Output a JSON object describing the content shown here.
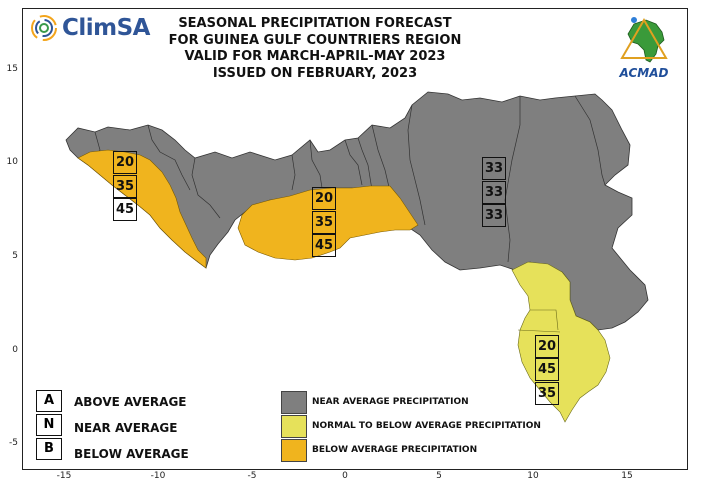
{
  "title": {
    "line1": "SEASONAL PRECIPITATION FORECAST",
    "line2": "FOR GUINEA GULF COUNTRIERS REGION",
    "line3": "VALID FOR MARCH-APRIL-MAY 2023",
    "line4": "ISSUED ON FEBRUARY, 2023"
  },
  "logos": {
    "left": "ClimSA",
    "right": "ACMAD"
  },
  "axes": {
    "y_ticks": [
      "15",
      "10",
      "5",
      "0",
      "-5"
    ],
    "x_ticks": [
      "-15",
      "-10",
      "-5",
      "0",
      "5",
      "10",
      "15"
    ]
  },
  "colors": {
    "near_average": "#7f7f7f",
    "normal_to_below": "#e6e15a",
    "below_average": "#f0b41e"
  },
  "zones": {
    "west": [
      "20",
      "35",
      "45"
    ],
    "center": [
      "20",
      "35",
      "45"
    ],
    "east": [
      "33",
      "33",
      "33"
    ],
    "south": [
      "20",
      "45",
      "35"
    ]
  },
  "key": [
    {
      "letter": "A",
      "label": "ABOVE AVERAGE"
    },
    {
      "letter": "N",
      "label": "NEAR AVERAGE"
    },
    {
      "letter": "B",
      "label": "BELOW AVERAGE"
    }
  ],
  "legend": [
    {
      "label": "NEAR AVERAGE PRECIPITATION"
    },
    {
      "label": "NORMAL TO BELOW AVERAGE PRECIPITATION"
    },
    {
      "label": "BELOW AVERAGE PRECIPITATION"
    }
  ]
}
